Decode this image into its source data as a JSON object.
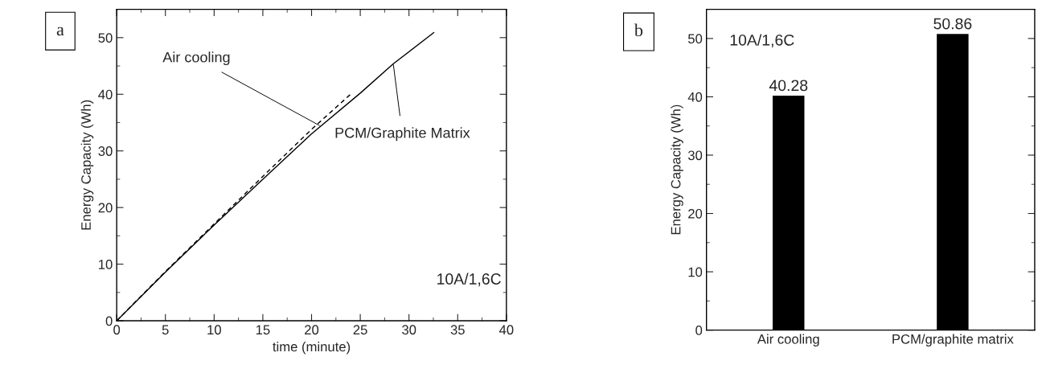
{
  "chart_data": [
    {
      "type": "line",
      "xlabel": "time (minute)",
      "ylabel": "Energy Capacity (Wh)",
      "xlim": [
        0,
        40
      ],
      "ylim": [
        0,
        55
      ],
      "xticks": [
        0,
        5,
        10,
        15,
        20,
        25,
        30,
        35,
        40
      ],
      "yticks": [
        0,
        10,
        20,
        30,
        40,
        50
      ],
      "grid": false,
      "legend": false,
      "series": [
        {
          "color": "#000000",
          "line_style": "dashed",
          "x": [
            0,
            5,
            10,
            15,
            20,
            24.2
          ],
          "values": [
            0,
            8.7,
            17.1,
            25.5,
            33.8,
            40.3
          ]
        },
        {
          "color": "#000000",
          "line_style": "solid",
          "x": [
            0,
            5,
            10,
            15,
            20,
            25,
            28.4,
            32.55
          ],
          "values": [
            0,
            8.6,
            16.9,
            25.0,
            33.0,
            40.2,
            45.4,
            50.9
          ]
        }
      ],
      "annotations": [
        "a",
        {
          "text": "Air cooling",
          "x": 20.8,
          "y": 34.5
        },
        {
          "text": "PCM/Graphite Matrix",
          "x": 28.4,
          "y": 45.2
        },
        "10A/1,6C"
      ]
    },
    {
      "type": "bar",
      "ylabel": "Energy Capacity (Wh)",
      "categories": [
        "Air cooling",
        "PCM/graphite matrix"
      ],
      "values": [
        40.28,
        50.86
      ],
      "color": "#000000",
      "ylim": [
        0,
        55
      ],
      "yticks": [
        0,
        10,
        20,
        30,
        40,
        50
      ],
      "data_labels": true,
      "grid": false,
      "legend": false,
      "annotations": [
        "b",
        "10A/1,6C"
      ]
    }
  ]
}
